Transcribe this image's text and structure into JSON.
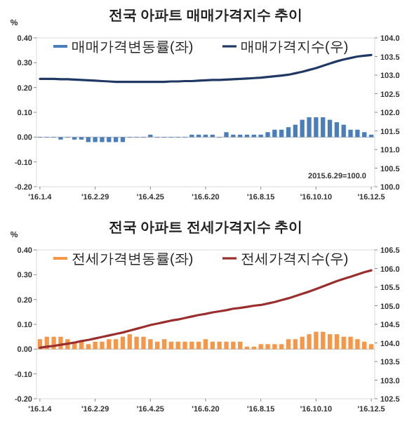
{
  "chart_data": [
    {
      "type": "bar",
      "title": "전국 아파트 매매가격지수 추이",
      "ylabel": "%",
      "legend": "top",
      "categories": [
        "'16.1.4",
        null,
        null,
        null,
        null,
        null,
        null,
        null,
        "'16.2.29",
        null,
        null,
        null,
        null,
        null,
        null,
        null,
        "'16.4.25",
        null,
        null,
        null,
        null,
        null,
        null,
        null,
        "'16.6.20",
        null,
        null,
        null,
        null,
        null,
        null,
        null,
        "'16.8.15",
        null,
        null,
        null,
        null,
        null,
        null,
        null,
        "'16.10.10",
        null,
        null,
        null,
        null,
        null,
        null,
        null,
        "'16.12.5"
      ],
      "ylim": [
        -0.2,
        0.4
      ],
      "yticks": [
        {
          "value": -0.2,
          "label": "-0.20"
        },
        {
          "value": -0.1,
          "label": "-0.10"
        },
        {
          "value": 0,
          "label": "0.00"
        },
        {
          "value": 0.1,
          "label": "0.10"
        },
        {
          "value": 0.2,
          "label": "0.20"
        },
        {
          "value": 0.3,
          "label": "0.30"
        },
        {
          "value": 0.4,
          "label": "0.40"
        }
      ],
      "y2lim": [
        100,
        104
      ],
      "y2ticks": [
        {
          "value": 100,
          "label": "100.0"
        },
        {
          "value": 100.5,
          "label": "100.5"
        },
        {
          "value": 101,
          "label": "101.0"
        },
        {
          "value": 101.5,
          "label": "101.5"
        },
        {
          "value": 102,
          "label": "102.0"
        },
        {
          "value": 102.5,
          "label": "102.5"
        },
        {
          "value": 103,
          "label": "103.0"
        },
        {
          "value": 103.5,
          "label": "103.5"
        },
        {
          "value": 104,
          "label": "104.0"
        }
      ],
      "annotations": [
        "2015.6.29=100.0"
      ],
      "series": [
        {
          "name": "매매가격변동률(좌)",
          "color": "#4a7ebb",
          "values": [
            0.0,
            0.0,
            0.0,
            -0.01,
            0.0,
            -0.01,
            -0.01,
            -0.02,
            -0.02,
            -0.02,
            -0.02,
            -0.02,
            -0.02,
            0.0,
            0.0,
            0.0,
            0.01,
            0.0,
            0.0,
            0.0,
            0.0,
            0.0,
            0.01,
            0.01,
            0.01,
            0.01,
            0.0,
            0.02,
            0.01,
            0.01,
            0.01,
            0.01,
            0.01,
            0.02,
            0.03,
            0.03,
            0.04,
            0.05,
            0.07,
            0.08,
            0.08,
            0.08,
            0.07,
            0.06,
            0.05,
            0.03,
            0.03,
            0.02,
            0.01
          ]
        },
        {
          "name": "매매가격지수(우)",
          "type": "line",
          "axis": "y2",
          "color": "#1f3864",
          "values": [
            102.9,
            102.9,
            102.9,
            102.89,
            102.89,
            102.88,
            102.87,
            102.86,
            102.85,
            102.84,
            102.83,
            102.82,
            102.82,
            102.82,
            102.82,
            102.82,
            102.82,
            102.82,
            102.82,
            102.83,
            102.83,
            102.84,
            102.84,
            102.85,
            102.86,
            102.87,
            102.87,
            102.88,
            102.89,
            102.9,
            102.91,
            102.92,
            102.93,
            102.95,
            102.97,
            102.99,
            103.01,
            103.05,
            103.09,
            103.14,
            103.19,
            103.25,
            103.31,
            103.37,
            103.42,
            103.46,
            103.5,
            103.52,
            103.54
          ]
        }
      ]
    },
    {
      "type": "bar",
      "title": "전국 아파트  전세가격지수 추이",
      "ylabel": "%",
      "legend": "top",
      "categories": [
        "'16.1.4",
        null,
        null,
        null,
        null,
        null,
        null,
        null,
        "'16.2.29",
        null,
        null,
        null,
        null,
        null,
        null,
        null,
        "'16.4.25",
        null,
        null,
        null,
        null,
        null,
        null,
        null,
        "'16.6.20",
        null,
        null,
        null,
        null,
        null,
        null,
        null,
        "'16.8.15",
        null,
        null,
        null,
        null,
        null,
        null,
        null,
        "'16.10.10",
        null,
        null,
        null,
        null,
        null,
        null,
        null,
        "'16.12.5"
      ],
      "ylim": [
        -0.2,
        0.4
      ],
      "yticks": [
        {
          "value": -0.2,
          "label": "-0.20"
        },
        {
          "value": -0.1,
          "label": "-0.10"
        },
        {
          "value": 0,
          "label": "0.00"
        },
        {
          "value": 0.1,
          "label": "0.10"
        },
        {
          "value": 0.2,
          "label": "0.20"
        },
        {
          "value": 0.3,
          "label": "0.30"
        },
        {
          "value": 0.4,
          "label": "0.40"
        }
      ],
      "y2lim": [
        102.5,
        106.5
      ],
      "y2ticks": [
        {
          "value": 102.5,
          "label": "102.5"
        },
        {
          "value": 103,
          "label": "103.0"
        },
        {
          "value": 103.5,
          "label": "103.5"
        },
        {
          "value": 104,
          "label": "104.0"
        },
        {
          "value": 104.5,
          "label": "104.5"
        },
        {
          "value": 105,
          "label": "105.0"
        },
        {
          "value": 105.5,
          "label": "105.5"
        },
        {
          "value": 106,
          "label": "106.0"
        },
        {
          "value": 106.5,
          "label": "106.5"
        }
      ],
      "series": [
        {
          "name": "전세가격변동률(좌)",
          "color": "#f79646",
          "values": [
            0.04,
            0.05,
            0.05,
            0.05,
            0.04,
            0.03,
            0.03,
            0.02,
            0.03,
            0.03,
            0.04,
            0.04,
            0.05,
            0.06,
            0.05,
            0.05,
            0.04,
            0.03,
            0.04,
            0.03,
            0.03,
            0.03,
            0.03,
            0.03,
            0.04,
            0.03,
            0.03,
            0.03,
            0.03,
            0.03,
            0.01,
            0.01,
            0.02,
            0.02,
            0.02,
            0.02,
            0.04,
            0.04,
            0.05,
            0.06,
            0.07,
            0.07,
            0.06,
            0.06,
            0.05,
            0.05,
            0.04,
            0.03,
            0.02
          ]
        },
        {
          "name": "전세가격지수(우)",
          "type": "line",
          "axis": "y2",
          "color": "#9b2d2d",
          "values": [
            103.87,
            103.9,
            103.92,
            103.95,
            103.98,
            104.01,
            104.05,
            104.08,
            104.12,
            104.16,
            104.2,
            104.24,
            104.28,
            104.33,
            104.38,
            104.43,
            104.48,
            104.52,
            104.56,
            104.6,
            104.63,
            104.67,
            104.71,
            104.75,
            104.78,
            104.82,
            104.85,
            104.88,
            104.92,
            104.94,
            104.97,
            105.0,
            105.02,
            105.06,
            105.1,
            105.15,
            105.2,
            105.26,
            105.32,
            105.38,
            105.45,
            105.52,
            105.59,
            105.66,
            105.72,
            105.78,
            105.84,
            105.9,
            105.95
          ]
        }
      ]
    }
  ]
}
